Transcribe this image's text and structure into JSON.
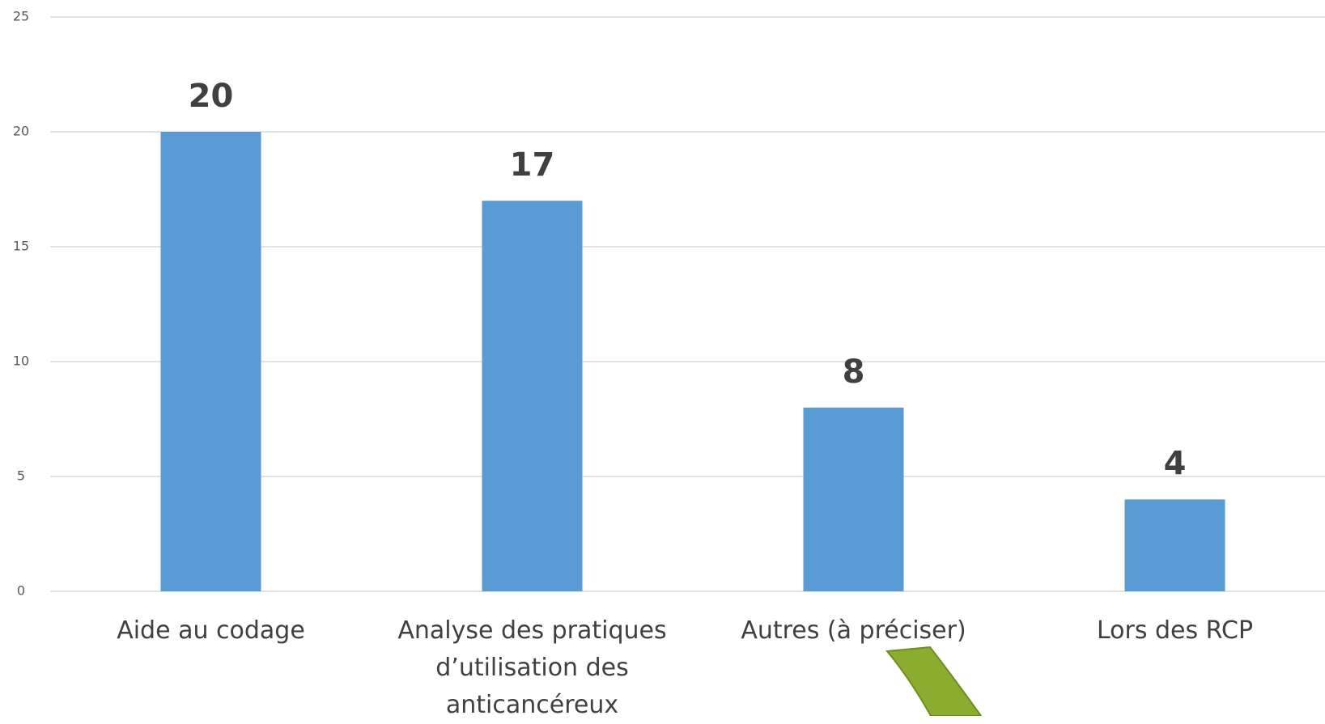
{
  "chart_data": {
    "type": "bar",
    "categories": [
      "Aide au codage",
      "Analyse des pratiques d’utilisation des anticancéreux",
      "Autres (à préciser)",
      "Lors des RCP"
    ],
    "values": [
      20,
      17,
      8,
      4
    ],
    "color": "#5b9bd5",
    "ylim": [
      0,
      25
    ],
    "yticks": [
      0,
      5,
      10,
      15,
      20,
      25
    ],
    "grid": true
  }
}
